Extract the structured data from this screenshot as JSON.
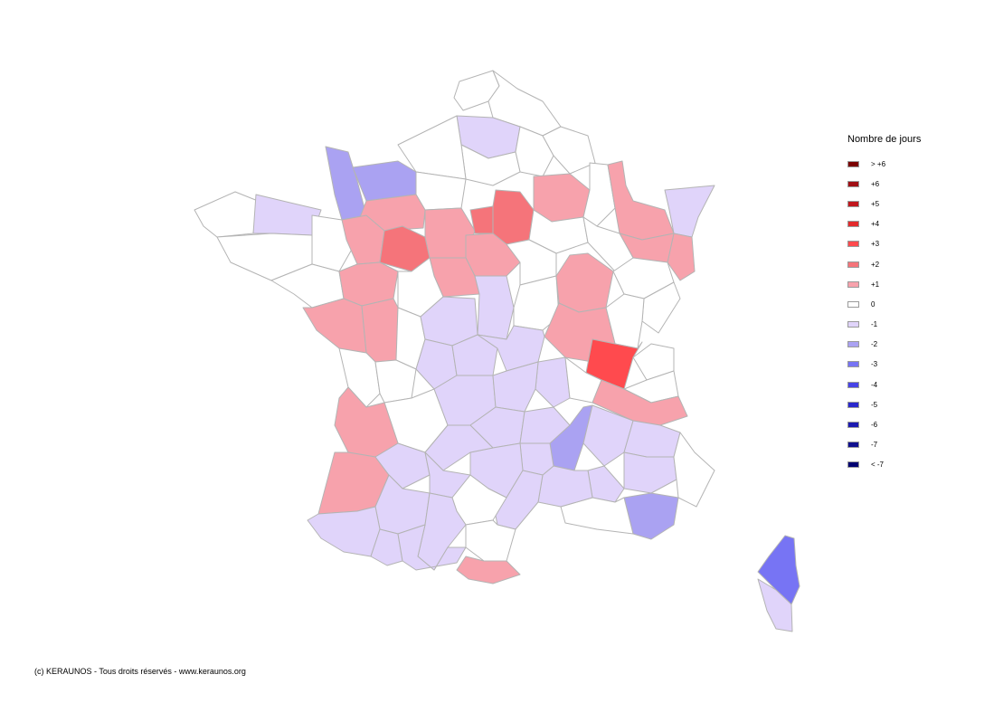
{
  "legend": {
    "title": "Nombre de jours",
    "items": [
      {
        "label": "> +6",
        "color": "#7a0000"
      },
      {
        "label": "+6",
        "color": "#a00f14"
      },
      {
        "label": "+5",
        "color": "#c0161d"
      },
      {
        "label": "+4",
        "color": "#e22a2c"
      },
      {
        "label": "+3",
        "color": "#ff4a4e"
      },
      {
        "label": "+2",
        "color": "#f5747a"
      },
      {
        "label": "+1",
        "color": "#f7a2ac"
      },
      {
        "label": "0",
        "color": "#ffffff"
      },
      {
        "label": "-1",
        "color": "#e0d4fa"
      },
      {
        "label": "-2",
        "color": "#aaa2f2"
      },
      {
        "label": "-3",
        "color": "#7774f4"
      },
      {
        "label": "-4",
        "color": "#4743e6"
      },
      {
        "label": "-5",
        "color": "#2a28cc"
      },
      {
        "label": "-6",
        "color": "#1c1ab0"
      },
      {
        "label": "-7",
        "color": "#10108e"
      },
      {
        "label": "< -7",
        "color": "#000070"
      }
    ]
  },
  "footer": {
    "credit": "(c) KERAUNOS - Tous droits réservés - www.keraunos.org"
  }
}
